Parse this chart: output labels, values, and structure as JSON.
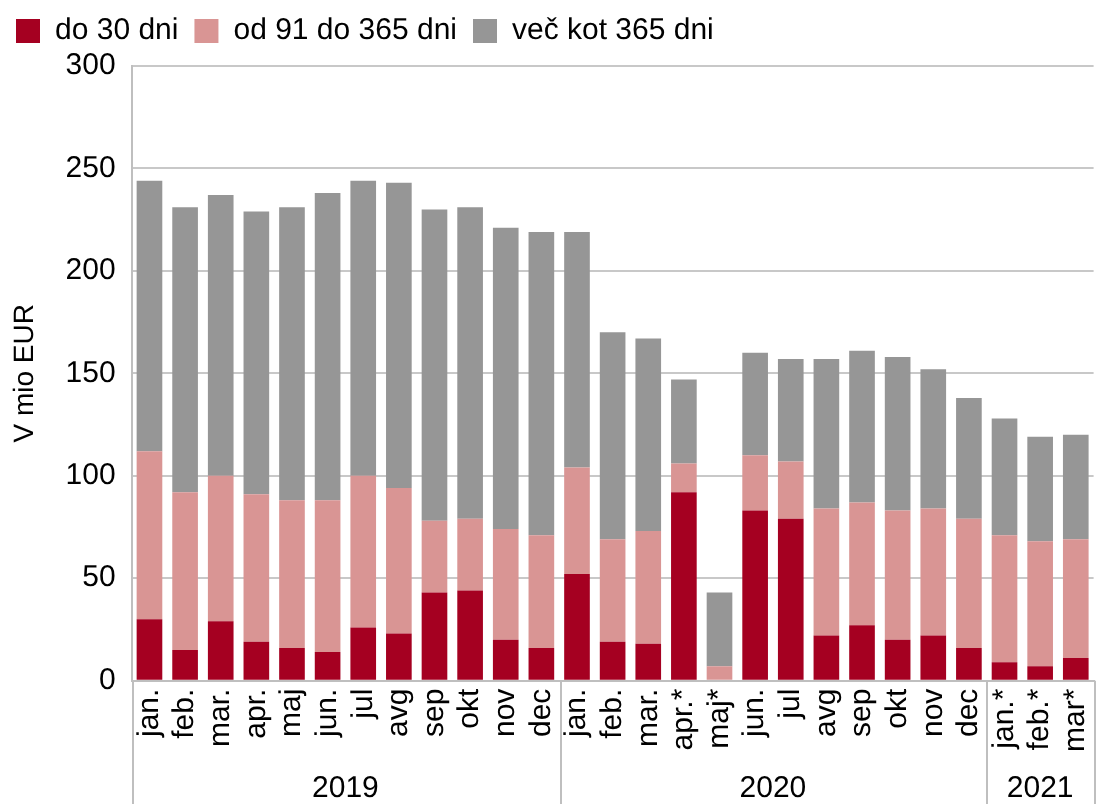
{
  "chart_data": {
    "type": "bar",
    "stacked": true,
    "ylabel": "V mio EUR",
    "categories": [
      "jan.",
      "feb.",
      "mar.",
      "apr.",
      "maj",
      "jun.",
      "jul",
      "avg",
      "sep",
      "okt",
      "nov",
      "dec",
      "jan.",
      "feb.",
      "mar.",
      "apr.*",
      "maj*",
      "jun.",
      "jul",
      "avg",
      "sep",
      "okt",
      "nov",
      "dec",
      "jan.*",
      "feb.*",
      "mar*"
    ],
    "series": [
      {
        "name": "do 30 dni",
        "color": "#a50021",
        "values": [
          30,
          15,
          29,
          19,
          16,
          14,
          26,
          23,
          43,
          44,
          20,
          16,
          52,
          19,
          18,
          92,
          0,
          83,
          79,
          22,
          27,
          20,
          22,
          16,
          9,
          7,
          11
        ]
      },
      {
        "name": "od 91 do 365 dni",
        "color": "#d99594",
        "values": [
          82,
          77,
          71,
          72,
          72,
          74,
          74,
          71,
          35,
          35,
          54,
          55,
          52,
          50,
          55,
          14,
          7,
          27,
          28,
          62,
          60,
          63,
          62,
          63,
          62,
          61,
          58
        ]
      },
      {
        "name": "več kot 365 dni",
        "color": "#969696",
        "values": [
          132,
          139,
          137,
          138,
          143,
          150,
          144,
          149,
          152,
          152,
          147,
          148,
          115,
          101,
          94,
          41,
          36,
          50,
          50,
          73,
          74,
          75,
          68,
          59,
          57,
          51,
          51
        ]
      }
    ],
    "annotations": [
      "2019",
      "2020",
      "2021"
    ],
    "ylim": [
      0,
      300
    ],
    "yticks": [
      0,
      50,
      100,
      150,
      200,
      250,
      300
    ],
    "grid": "y",
    "legend": "top"
  }
}
